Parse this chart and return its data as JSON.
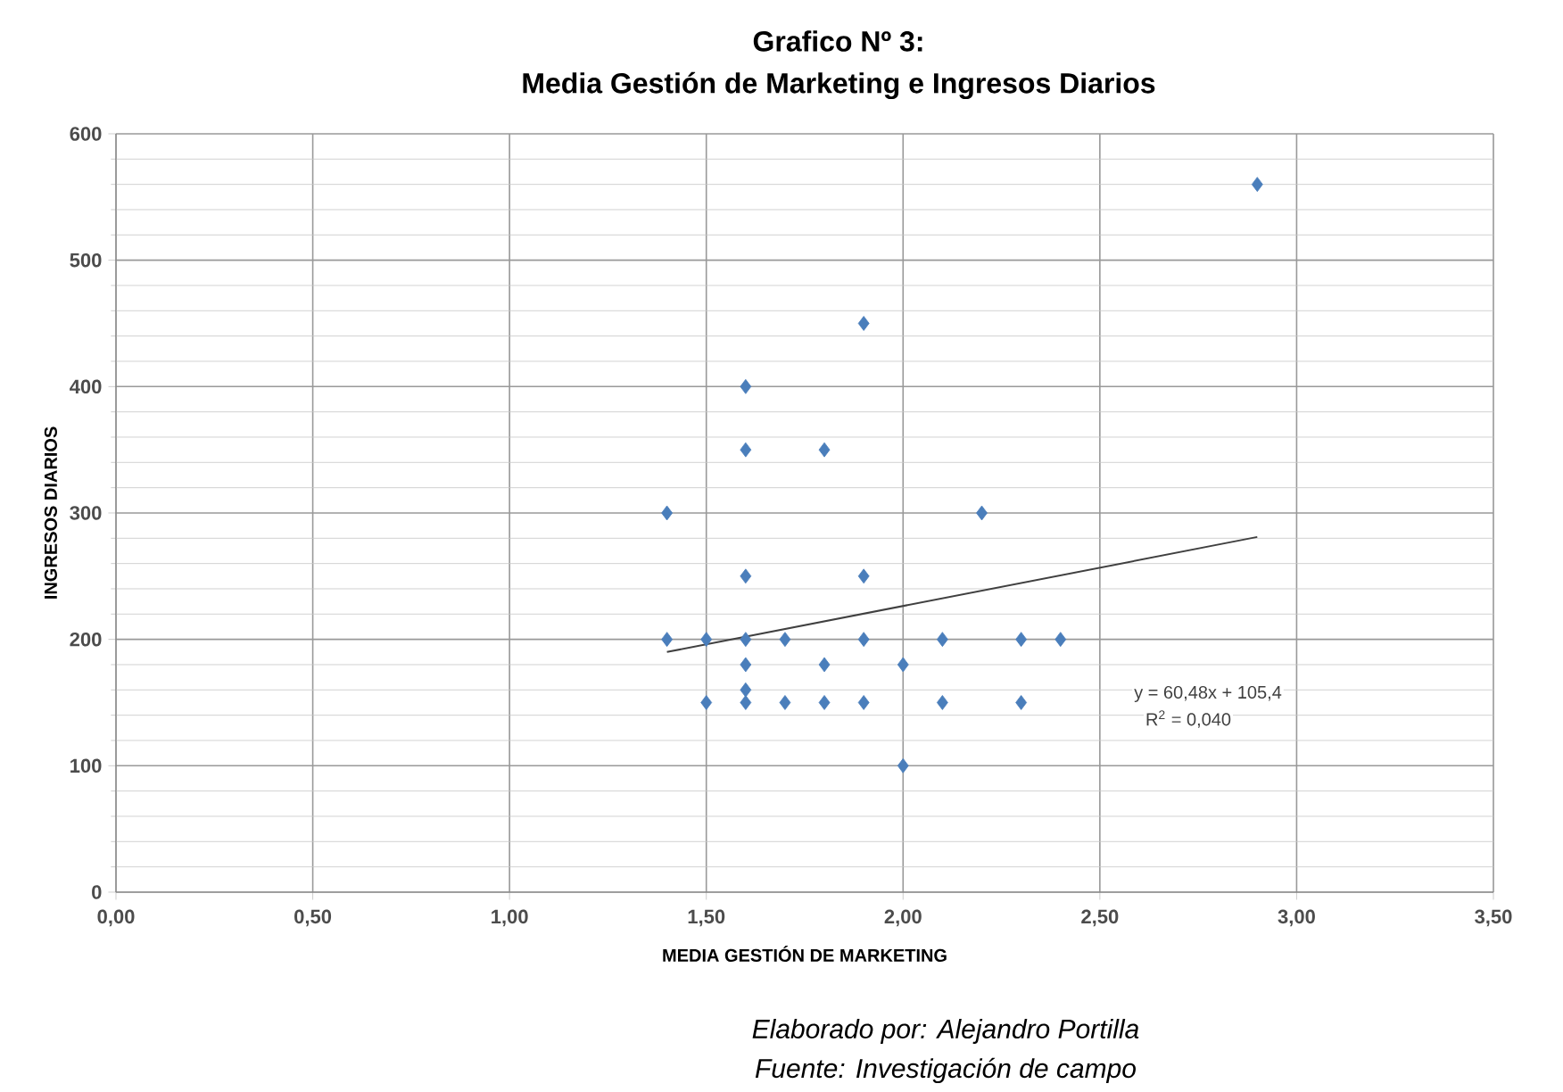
{
  "chart_data": {
    "type": "scatter",
    "title": "Grafico Nº 3:",
    "subtitle": "Media Gestión de Marketing e Ingresos Diarios",
    "xlabel": "MEDIA GESTIÓN DE MARKETING",
    "ylabel": "INGRESOS DIARIOS",
    "xlim": [
      0,
      3.5
    ],
    "ylim": [
      0,
      600
    ],
    "xticks": [
      {
        "value": 0,
        "label": "0,00"
      },
      {
        "value": 0.5,
        "label": "0,50"
      },
      {
        "value": 1,
        "label": "1,00"
      },
      {
        "value": 1.5,
        "label": "1,50"
      },
      {
        "value": 2,
        "label": "2,00"
      },
      {
        "value": 2.5,
        "label": "2,50"
      },
      {
        "value": 3,
        "label": "3,00"
      },
      {
        "value": 3.5,
        "label": "3,50"
      }
    ],
    "yticks": [
      0,
      100,
      200,
      300,
      400,
      500,
      600
    ],
    "grid": true,
    "marker": "diamond",
    "series": [
      {
        "color": "#4a7ebb",
        "x": [
          1.4,
          1.4,
          1.5,
          1.5,
          1.6,
          1.6,
          1.6,
          1.6,
          1.6,
          1.6,
          1.6,
          1.7,
          1.7,
          1.8,
          1.8,
          1.8,
          1.9,
          1.9,
          1.9,
          1.9,
          2.0,
          2.0,
          2.1,
          2.1,
          2.2,
          2.3,
          2.3,
          2.4,
          2.9
        ],
        "values": [
          300,
          200,
          200,
          150,
          400,
          350,
          250,
          200,
          180,
          160,
          150,
          200,
          150,
          350,
          180,
          150,
          450,
          250,
          200,
          150,
          180,
          100,
          200,
          150,
          300,
          200,
          150,
          200,
          560
        ]
      },
      {
        "type": "line",
        "color": "#404040",
        "marker": "none",
        "line_style": "solid",
        "x": [
          1.4,
          2.9
        ],
        "values": [
          190,
          281
        ]
      }
    ],
    "annotations": [
      "y = 60,48x + 105,4",
      "R$^{2}$ = 0,040",
      "Elaborado por: Alejandro Portilla",
      "Fuente: Investigación de campo"
    ]
  }
}
